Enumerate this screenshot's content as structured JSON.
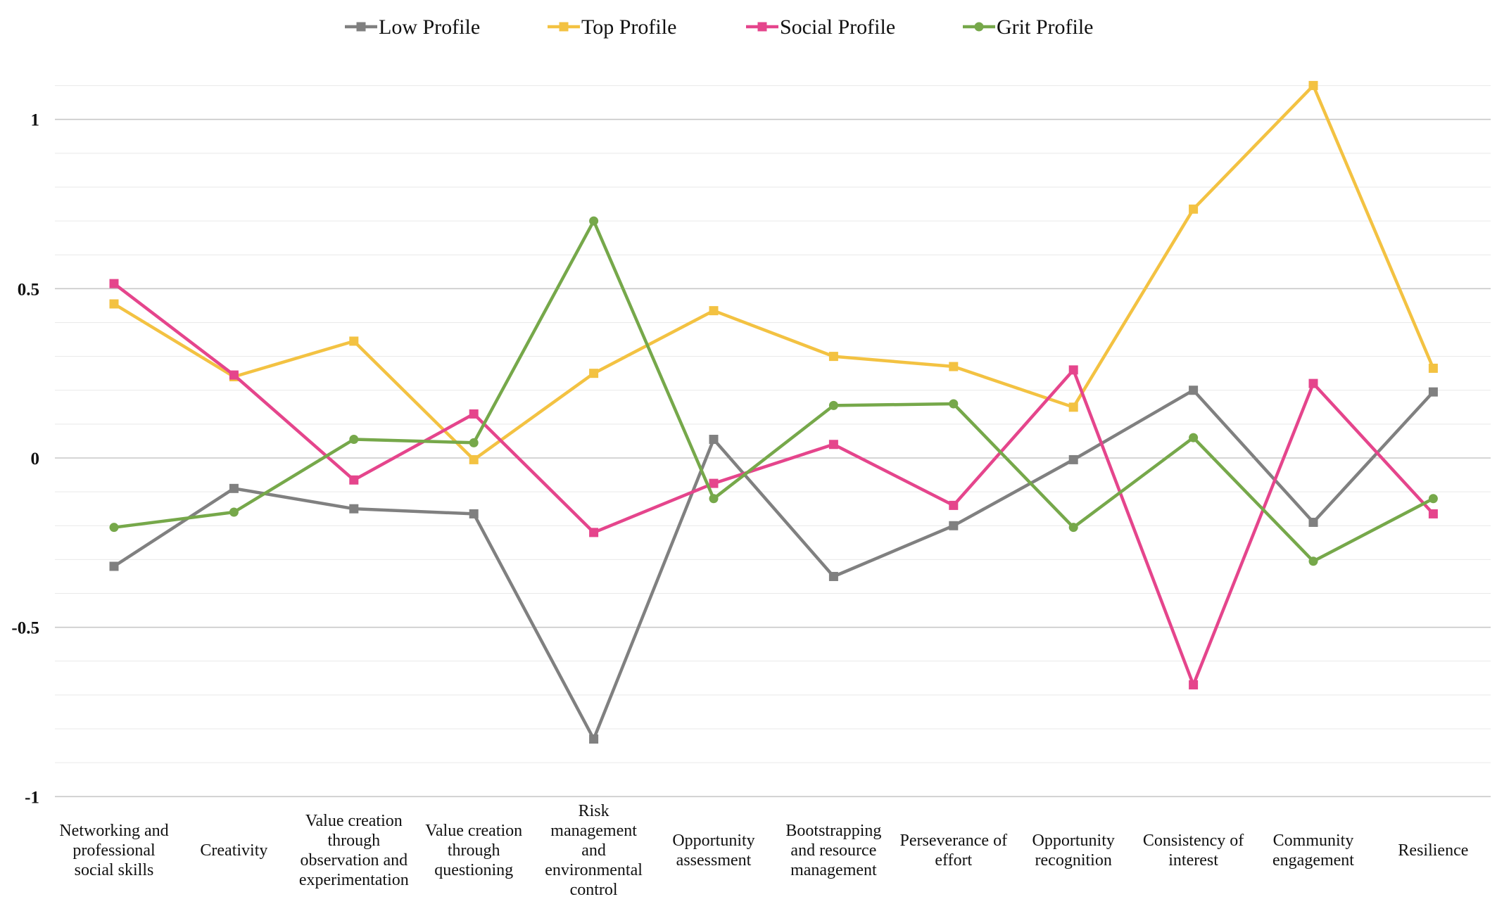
{
  "chart_data": {
    "type": "line",
    "title": "",
    "xlabel": "",
    "ylabel": "",
    "ylim": [
      -1,
      1.2
    ],
    "yticks": [
      1,
      0.5,
      0,
      -0.5,
      -1
    ],
    "ytick_labels": [
      "1",
      "0.5",
      "0",
      "-0.5",
      "-1"
    ],
    "grid": true,
    "legend_position": "top-center",
    "categories": [
      [
        "Networking and",
        "professional",
        "social skills"
      ],
      [
        "Creativity"
      ],
      [
        "Value creation",
        "through",
        "observation and",
        "experimentation"
      ],
      [
        "Value creation",
        "through",
        "questioning"
      ],
      [
        "Risk",
        "management",
        "and",
        "environmental",
        "control"
      ],
      [
        "Opportunity",
        "assessment"
      ],
      [
        "Bootstrapping",
        "and resource",
        "management"
      ],
      [
        "Perseverance of",
        "effort"
      ],
      [
        "Opportunity",
        "recognition"
      ],
      [
        "Consistency of",
        "interest"
      ],
      [
        "Community",
        "engagement"
      ],
      [
        "Resilience"
      ]
    ],
    "series": [
      {
        "name": "Low Profile",
        "color": "#808080",
        "marker": "square",
        "values": [
          -0.32,
          -0.09,
          -0.15,
          -0.165,
          -0.83,
          0.055,
          -0.35,
          -0.2,
          -0.005,
          0.2,
          -0.19,
          0.195
        ]
      },
      {
        "name": "Top Profile",
        "color": "#F3C242",
        "marker": "square",
        "values": [
          0.455,
          0.24,
          0.345,
          -0.005,
          0.25,
          0.435,
          0.3,
          0.27,
          0.15,
          0.735,
          1.1,
          0.265
        ]
      },
      {
        "name": "Social Profile",
        "color": "#E5458C",
        "marker": "square",
        "values": [
          0.515,
          0.245,
          -0.065,
          0.13,
          -0.22,
          -0.075,
          0.04,
          -0.14,
          0.26,
          -0.67,
          0.22,
          -0.165
        ]
      },
      {
        "name": "Grit Profile",
        "color": "#76A84A",
        "marker": "circle",
        "values": [
          -0.205,
          -0.16,
          0.055,
          0.045,
          0.7,
          -0.12,
          0.155,
          0.16,
          -0.205,
          0.06,
          -0.305,
          -0.12
        ]
      }
    ]
  }
}
